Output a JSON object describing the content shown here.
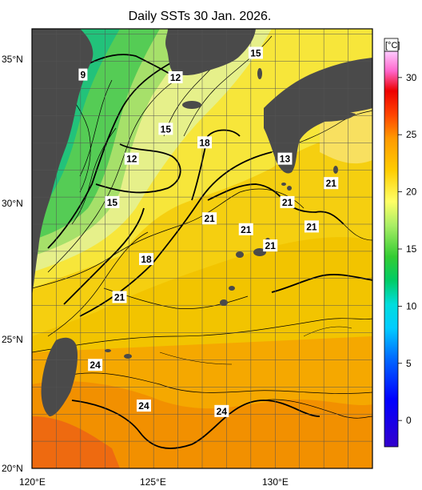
{
  "title": "Daily SSTs 30 Jan. 2026.",
  "unit": "[°C]",
  "colorbar_ticks": [
    "0",
    "5",
    "10",
    "15",
    "20",
    "25",
    "30"
  ],
  "lat_labels": [
    "35°N",
    "30°N",
    "25°N",
    "20°N"
  ],
  "lon_labels": [
    "120°E",
    "125°E",
    "130°E"
  ],
  "contour_labels": [
    {
      "text": "9",
      "lon": 122.1,
      "lat": 34.5
    },
    {
      "text": "12",
      "lon": 125.9,
      "lat": 34.4
    },
    {
      "text": "15",
      "lon": 129.2,
      "lat": 35.3
    },
    {
      "text": "15",
      "lon": 125.5,
      "lat": 32.5
    },
    {
      "text": "18",
      "lon": 127.1,
      "lat": 32.0
    },
    {
      "text": "12",
      "lon": 124.1,
      "lat": 31.4
    },
    {
      "text": "13",
      "lon": 130.4,
      "lat": 31.4
    },
    {
      "text": "21",
      "lon": 132.3,
      "lat": 30.5
    },
    {
      "text": "15",
      "lon": 123.3,
      "lat": 29.8
    },
    {
      "text": "21",
      "lon": 130.5,
      "lat": 29.8
    },
    {
      "text": "21",
      "lon": 127.3,
      "lat": 29.2
    },
    {
      "text": "21",
      "lon": 131.5,
      "lat": 28.9
    },
    {
      "text": "21",
      "lon": 128.8,
      "lat": 28.8
    },
    {
      "text": "21",
      "lon": 129.8,
      "lat": 28.2
    },
    {
      "text": "18",
      "lon": 124.7,
      "lat": 27.7
    },
    {
      "text": "21",
      "lon": 123.6,
      "lat": 26.3
    },
    {
      "text": "24",
      "lon": 122.6,
      "lat": 23.8
    },
    {
      "text": "24",
      "lon": 124.6,
      "lat": 22.3
    },
    {
      "text": "24",
      "lon": 127.8,
      "lat": 22.1
    }
  ]
}
